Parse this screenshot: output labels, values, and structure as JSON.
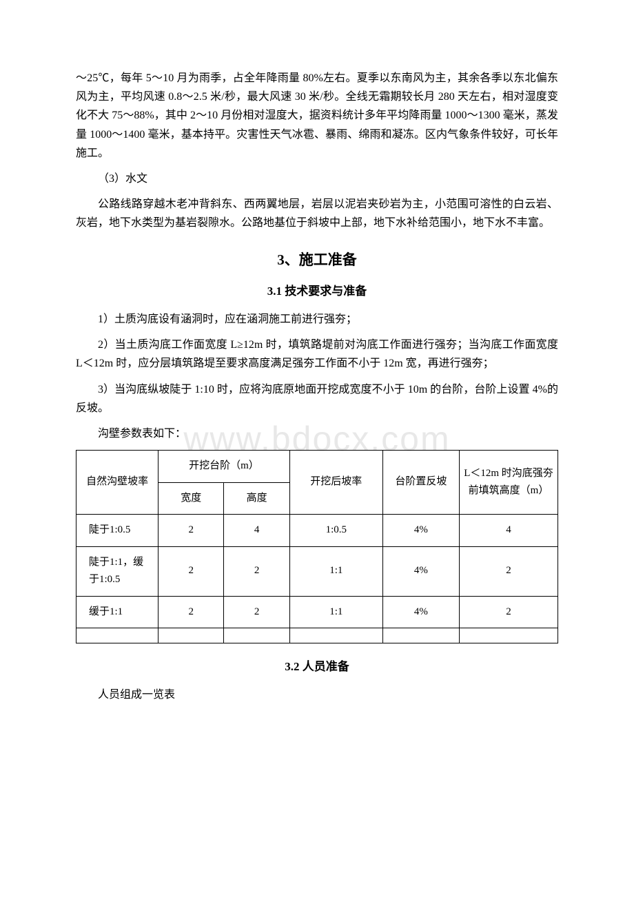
{
  "watermark": "www.bdocx.com",
  "para1": "～25℃，每年 5～10 月为雨季，占全年降雨量 80%左右。夏季以东南风为主，其余各季以东北偏东风为主，平均风速 0.8～2.5 米/秒，最大风速 30 米/秒。全线无霜期较长月 280 天左右，相对湿度变化不大 75～88%，其中 2～10 月份相对湿度大，据资料统计多年平均降雨量 1000～1300 毫米，蒸发量 1000～1400 毫米，基本持平。灾害性天气冰雹、暴雨、绵雨和凝冻。区内气象条件较好，可长年施工。",
  "para2_label": "（3）水文",
  "para3": "公路线路穿越木老冲背斜东、西两翼地层，岩层以泥岩夹砂岩为主，小范围可溶性的白云岩、灰岩，地下水类型为基岩裂隙水。公路地基位于斜坡中上部，地下水补给范围小，地下水不丰富。",
  "section3_title": "3、施工准备",
  "section3_1_title": "3.1 技术要求与准备",
  "item1": "1）土质沟底设有涵洞时，应在涵洞施工前进行强夯；",
  "item2": "2）当土质沟底工作面宽度 L≥12m 时，填筑路堤前对沟底工作面进行强夯；当沟底工作面宽度 L＜12m 时，应分层填筑路堤至要求高度满足强夯工作面不小于 12m 宽，再进行强夯；",
  "item3": "3）当沟底纵坡陡于 1:10 时，应将沟底原地面开挖成宽度不小于 10m 的台阶，台阶上设置 4%的反坡。",
  "table_intro": "沟壁参数表如下：",
  "table": {
    "headers": {
      "col1": "自然沟壁坡率",
      "col2_group": "开挖台阶（m）",
      "col2a": "宽度",
      "col2b": "高度",
      "col3": "开挖后坡率",
      "col4": "台阶置反坡",
      "col5": "L＜12m 时沟底强夯前填筑高度（m）"
    },
    "rows": [
      {
        "c1": "陡于1:0.5",
        "c2": "2",
        "c3": "4",
        "c4": "1:0.5",
        "c5": "4%",
        "c6": "4"
      },
      {
        "c1": "陡于1:1，缓于1:0.5",
        "c2": "2",
        "c3": "2",
        "c4": "1:1",
        "c5": "4%",
        "c6": "2"
      },
      {
        "c1": "缓于1:1",
        "c2": "2",
        "c3": "2",
        "c4": "1:1",
        "c5": "4%",
        "c6": "2"
      }
    ]
  },
  "section3_2_title": "3.2 人员准备",
  "para_personnel": "人员组成一览表"
}
